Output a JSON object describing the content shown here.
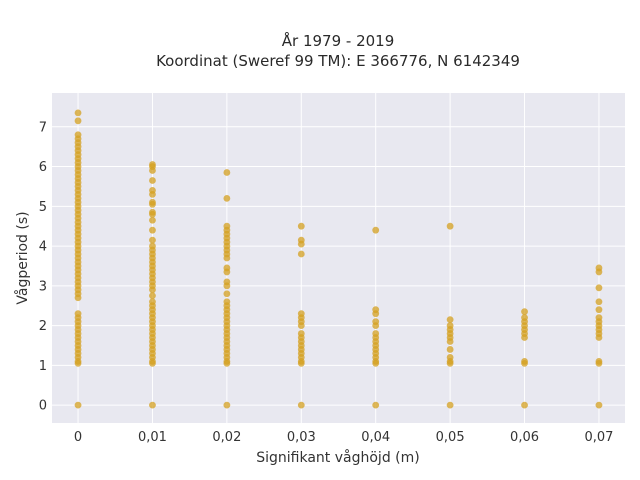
{
  "chart_data": {
    "type": "scatter",
    "title_line1": "År 1979 - 2019",
    "title_line2": "Koordinat (Sweref 99 TM): E 366776, N 6142349",
    "xlabel": "Signifikant våghöjd (m)",
    "ylabel": "Vågperiod (s)",
    "x_ticks": [
      0,
      0.01,
      0.02,
      0.03,
      0.04,
      0.05,
      0.06,
      0.07
    ],
    "x_tick_labels": [
      "0",
      "0,01",
      "0,02",
      "0,03",
      "0,04",
      "0,05",
      "0,06",
      "0,07"
    ],
    "y_ticks": [
      0,
      1,
      2,
      3,
      4,
      5,
      6,
      7
    ],
    "y_tick_labels": [
      "0",
      "1",
      "2",
      "3",
      "4",
      "5",
      "6",
      "7"
    ],
    "xlim": [
      -0.0035,
      0.0735
    ],
    "ylim": [
      -0.45,
      7.85
    ],
    "grid": true,
    "background": "#e8e8f0",
    "marker_color": "#d4a020",
    "series": [
      {
        "points": [
          [
            0,
            0
          ],
          [
            0,
            1.05
          ],
          [
            0,
            1.1
          ],
          [
            0,
            1.2
          ],
          [
            0,
            1.3
          ],
          [
            0,
            1.4
          ],
          [
            0,
            1.5
          ],
          [
            0,
            1.6
          ],
          [
            0,
            1.7
          ],
          [
            0,
            1.8
          ],
          [
            0,
            1.9
          ],
          [
            0,
            2.0
          ],
          [
            0,
            2.1
          ],
          [
            0,
            2.2
          ],
          [
            0,
            2.3
          ],
          [
            0,
            2.7
          ],
          [
            0,
            2.8
          ],
          [
            0,
            2.9
          ],
          [
            0,
            3.0
          ],
          [
            0,
            3.1
          ],
          [
            0,
            3.2
          ],
          [
            0,
            3.3
          ],
          [
            0,
            3.4
          ],
          [
            0,
            3.5
          ],
          [
            0,
            3.6
          ],
          [
            0,
            3.7
          ],
          [
            0,
            3.8
          ],
          [
            0,
            3.9
          ],
          [
            0,
            4.0
          ],
          [
            0,
            4.1
          ],
          [
            0,
            4.2
          ],
          [
            0,
            4.3
          ],
          [
            0,
            4.4
          ],
          [
            0,
            4.5
          ],
          [
            0,
            4.6
          ],
          [
            0,
            4.7
          ],
          [
            0,
            4.8
          ],
          [
            0,
            4.9
          ],
          [
            0,
            5.0
          ],
          [
            0,
            5.1
          ],
          [
            0,
            5.2
          ],
          [
            0,
            5.3
          ],
          [
            0,
            5.4
          ],
          [
            0,
            5.5
          ],
          [
            0,
            5.6
          ],
          [
            0,
            5.7
          ],
          [
            0,
            5.8
          ],
          [
            0,
            5.9
          ],
          [
            0,
            6.0
          ],
          [
            0,
            6.1
          ],
          [
            0,
            6.2
          ],
          [
            0,
            6.3
          ],
          [
            0,
            6.4
          ],
          [
            0,
            6.5
          ],
          [
            0,
            6.6
          ],
          [
            0,
            6.7
          ],
          [
            0,
            6.8
          ],
          [
            0,
            7.15
          ],
          [
            0,
            7.35
          ],
          [
            0.01,
            0
          ],
          [
            0.01,
            1.05
          ],
          [
            0.01,
            1.1
          ],
          [
            0.01,
            1.2
          ],
          [
            0.01,
            1.3
          ],
          [
            0.01,
            1.4
          ],
          [
            0.01,
            1.5
          ],
          [
            0.01,
            1.6
          ],
          [
            0.01,
            1.7
          ],
          [
            0.01,
            1.8
          ],
          [
            0.01,
            1.9
          ],
          [
            0.01,
            2.0
          ],
          [
            0.01,
            2.1
          ],
          [
            0.01,
            2.2
          ],
          [
            0.01,
            2.3
          ],
          [
            0.01,
            2.4
          ],
          [
            0.01,
            2.5
          ],
          [
            0.01,
            2.6
          ],
          [
            0.01,
            2.75
          ],
          [
            0.01,
            2.9
          ],
          [
            0.01,
            3.0
          ],
          [
            0.01,
            3.1
          ],
          [
            0.01,
            3.2
          ],
          [
            0.01,
            3.3
          ],
          [
            0.01,
            3.4
          ],
          [
            0.01,
            3.5
          ],
          [
            0.01,
            3.6
          ],
          [
            0.01,
            3.7
          ],
          [
            0.01,
            3.8
          ],
          [
            0.01,
            3.9
          ],
          [
            0.01,
            4.0
          ],
          [
            0.01,
            4.15
          ],
          [
            0.01,
            4.4
          ],
          [
            0.01,
            4.65
          ],
          [
            0.01,
            4.8
          ],
          [
            0.01,
            4.85
          ],
          [
            0.01,
            5.05
          ],
          [
            0.01,
            5.1
          ],
          [
            0.01,
            5.3
          ],
          [
            0.01,
            5.4
          ],
          [
            0.01,
            5.65
          ],
          [
            0.01,
            5.9
          ],
          [
            0.01,
            6.0
          ],
          [
            0.01,
            6.05
          ],
          [
            0.02,
            0
          ],
          [
            0.02,
            1.05
          ],
          [
            0.02,
            1.1
          ],
          [
            0.02,
            1.2
          ],
          [
            0.02,
            1.3
          ],
          [
            0.02,
            1.4
          ],
          [
            0.02,
            1.5
          ],
          [
            0.02,
            1.6
          ],
          [
            0.02,
            1.7
          ],
          [
            0.02,
            1.8
          ],
          [
            0.02,
            1.9
          ],
          [
            0.02,
            2.0
          ],
          [
            0.02,
            2.1
          ],
          [
            0.02,
            2.2
          ],
          [
            0.02,
            2.3
          ],
          [
            0.02,
            2.4
          ],
          [
            0.02,
            2.5
          ],
          [
            0.02,
            2.6
          ],
          [
            0.02,
            2.8
          ],
          [
            0.02,
            3.0
          ],
          [
            0.02,
            3.1
          ],
          [
            0.02,
            3.35
          ],
          [
            0.02,
            3.45
          ],
          [
            0.02,
            3.7
          ],
          [
            0.02,
            3.8
          ],
          [
            0.02,
            3.9
          ],
          [
            0.02,
            4.0
          ],
          [
            0.02,
            4.1
          ],
          [
            0.02,
            4.2
          ],
          [
            0.02,
            4.3
          ],
          [
            0.02,
            4.4
          ],
          [
            0.02,
            4.5
          ],
          [
            0.02,
            5.2
          ],
          [
            0.02,
            5.85
          ],
          [
            0.03,
            0
          ],
          [
            0.03,
            1.05
          ],
          [
            0.03,
            1.1
          ],
          [
            0.03,
            1.2
          ],
          [
            0.03,
            1.3
          ],
          [
            0.03,
            1.4
          ],
          [
            0.03,
            1.5
          ],
          [
            0.03,
            1.6
          ],
          [
            0.03,
            1.7
          ],
          [
            0.03,
            1.8
          ],
          [
            0.03,
            2.0
          ],
          [
            0.03,
            2.1
          ],
          [
            0.03,
            2.2
          ],
          [
            0.03,
            2.3
          ],
          [
            0.03,
            3.8
          ],
          [
            0.03,
            4.05
          ],
          [
            0.03,
            4.15
          ],
          [
            0.03,
            4.5
          ],
          [
            0.04,
            0
          ],
          [
            0.04,
            1.05
          ],
          [
            0.04,
            1.1
          ],
          [
            0.04,
            1.2
          ],
          [
            0.04,
            1.3
          ],
          [
            0.04,
            1.4
          ],
          [
            0.04,
            1.5
          ],
          [
            0.04,
            1.6
          ],
          [
            0.04,
            1.7
          ],
          [
            0.04,
            1.8
          ],
          [
            0.04,
            2.0
          ],
          [
            0.04,
            2.1
          ],
          [
            0.04,
            2.3
          ],
          [
            0.04,
            2.4
          ],
          [
            0.04,
            4.4
          ],
          [
            0.05,
            0
          ],
          [
            0.05,
            1.05
          ],
          [
            0.05,
            1.1
          ],
          [
            0.05,
            1.2
          ],
          [
            0.05,
            1.4
          ],
          [
            0.05,
            1.6
          ],
          [
            0.05,
            1.7
          ],
          [
            0.05,
            1.8
          ],
          [
            0.05,
            1.9
          ],
          [
            0.05,
            2.0
          ],
          [
            0.05,
            2.15
          ],
          [
            0.05,
            4.5
          ],
          [
            0.06,
            0
          ],
          [
            0.06,
            1.05
          ],
          [
            0.06,
            1.1
          ],
          [
            0.06,
            1.7
          ],
          [
            0.06,
            1.8
          ],
          [
            0.06,
            1.9
          ],
          [
            0.06,
            2.0
          ],
          [
            0.06,
            2.1
          ],
          [
            0.06,
            2.2
          ],
          [
            0.06,
            2.35
          ],
          [
            0.07,
            0
          ],
          [
            0.07,
            1.05
          ],
          [
            0.07,
            1.1
          ],
          [
            0.07,
            1.7
          ],
          [
            0.07,
            1.8
          ],
          [
            0.07,
            1.9
          ],
          [
            0.07,
            2.0
          ],
          [
            0.07,
            2.1
          ],
          [
            0.07,
            2.2
          ],
          [
            0.07,
            2.4
          ],
          [
            0.07,
            2.6
          ],
          [
            0.07,
            2.95
          ],
          [
            0.07,
            3.35
          ],
          [
            0.07,
            3.45
          ]
        ]
      }
    ]
  }
}
